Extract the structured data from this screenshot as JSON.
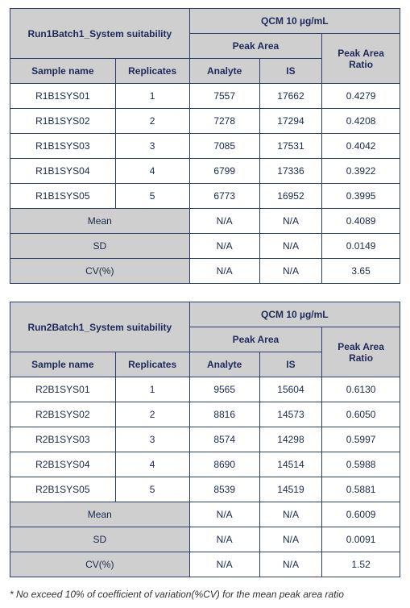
{
  "tables": [
    {
      "title": "Run1Batch1_System suitability",
      "top_header": "QCM 10 µg/mL",
      "peak_area_header": "Peak Area",
      "ratio_header": "Peak Area Ratio",
      "col_sample": "Sample name",
      "col_replicates": "Replicates",
      "col_analyte": "Analyte",
      "col_is": "IS",
      "rows": [
        {
          "sample": "R1B1SYS01",
          "rep": "1",
          "analyte": "7557",
          "is": "17662",
          "ratio": "0.4279"
        },
        {
          "sample": "R1B1SYS02",
          "rep": "2",
          "analyte": "7278",
          "is": "17294",
          "ratio": "0.4208"
        },
        {
          "sample": "R1B1SYS03",
          "rep": "3",
          "analyte": "7085",
          "is": "17531",
          "ratio": "0.4042"
        },
        {
          "sample": "R1B1SYS04",
          "rep": "4",
          "analyte": "6799",
          "is": "17336",
          "ratio": "0.3922"
        },
        {
          "sample": "R1B1SYS05",
          "rep": "5",
          "analyte": "6773",
          "is": "16952",
          "ratio": "0.3995"
        }
      ],
      "stats": [
        {
          "label": "Mean",
          "analyte": "N/A",
          "is": "N/A",
          "ratio": "0.4089"
        },
        {
          "label": "SD",
          "analyte": "N/A",
          "is": "N/A",
          "ratio": "0.0149"
        },
        {
          "label": "CV(%)",
          "analyte": "N/A",
          "is": "N/A",
          "ratio": "3.65"
        }
      ]
    },
    {
      "title": "Run2Batch1_System suitability",
      "top_header": "QCM 10 µg/mL",
      "peak_area_header": "Peak Area",
      "ratio_header": "Peak Area Ratio",
      "col_sample": "Sample name",
      "col_replicates": "Replicates",
      "col_analyte": "Analyte",
      "col_is": "IS",
      "rows": [
        {
          "sample": "R2B1SYS01",
          "rep": "1",
          "analyte": "9565",
          "is": "15604",
          "ratio": "0.6130"
        },
        {
          "sample": "R2B1SYS02",
          "rep": "2",
          "analyte": "8816",
          "is": "14573",
          "ratio": "0.6050"
        },
        {
          "sample": "R2B1SYS03",
          "rep": "3",
          "analyte": "8574",
          "is": "14298",
          "ratio": "0.5997"
        },
        {
          "sample": "R2B1SYS04",
          "rep": "4",
          "analyte": "8690",
          "is": "14514",
          "ratio": "0.5988"
        },
        {
          "sample": "R2B1SYS05",
          "rep": "5",
          "analyte": "8539",
          "is": "14519",
          "ratio": "0.5881"
        }
      ],
      "stats": [
        {
          "label": "Mean",
          "analyte": "N/A",
          "is": "N/A",
          "ratio": "0.6009"
        },
        {
          "label": "SD",
          "analyte": "N/A",
          "is": "N/A",
          "ratio": "0.0091"
        },
        {
          "label": "CV(%)",
          "analyte": "N/A",
          "is": "N/A",
          "ratio": "1.52"
        }
      ]
    }
  ],
  "footnote": "* No exceed 10% of coefficient of variation(%CV) for the mean peak area ratio",
  "colors": {
    "border": "#2c3e6e",
    "header_bg": "#cfcfcf",
    "text": "#1a2a4a"
  }
}
